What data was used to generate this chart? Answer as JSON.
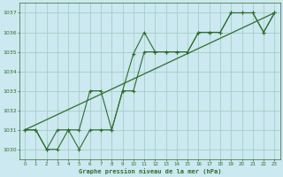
{
  "background_color": "#cce8f0",
  "grid_color": "#99ccbb",
  "line_color": "#2d6e2d",
  "title": "Graphe pression niveau de la mer (hPa)",
  "title_color": "#1a5c1a",
  "xlim": [
    -0.5,
    23.5
  ],
  "ylim": [
    1029.5,
    1037.5
  ],
  "yticks": [
    1030,
    1031,
    1032,
    1033,
    1034,
    1035,
    1036,
    1037
  ],
  "xticks": [
    0,
    1,
    2,
    3,
    4,
    5,
    6,
    7,
    8,
    9,
    10,
    11,
    12,
    13,
    14,
    15,
    16,
    17,
    18,
    19,
    20,
    21,
    22,
    23
  ],
  "line1_x": [
    0,
    1,
    2,
    3,
    4,
    5,
    6,
    7,
    8,
    9,
    10,
    11,
    12,
    13,
    14,
    15,
    16,
    17,
    18,
    19,
    20,
    21,
    22,
    23
  ],
  "line1_y": [
    1031.0,
    1031.0,
    1030.0,
    1031.0,
    1031.0,
    1031.0,
    1033.0,
    1033.0,
    1031.0,
    1033.0,
    1034.9,
    1036.0,
    1035.0,
    1035.0,
    1035.0,
    1035.0,
    1036.0,
    1036.0,
    1036.0,
    1037.0,
    1037.0,
    1037.0,
    1036.0,
    1037.0
  ],
  "line2_x": [
    0,
    1,
    2,
    3,
    4,
    5,
    6,
    7,
    8,
    9,
    10,
    11,
    12,
    13,
    14,
    15,
    16,
    17,
    18,
    19,
    20,
    21,
    22,
    23
  ],
  "line2_y": [
    1031.0,
    1031.0,
    1030.0,
    1030.0,
    1031.0,
    1030.0,
    1031.0,
    1031.0,
    1031.0,
    1033.0,
    1033.0,
    1035.0,
    1035.0,
    1035.0,
    1035.0,
    1035.0,
    1036.0,
    1036.0,
    1036.0,
    1037.0,
    1037.0,
    1037.0,
    1036.0,
    1037.0
  ],
  "line3_x": [
    0,
    23
  ],
  "line3_y": [
    1031.0,
    1037.0
  ]
}
